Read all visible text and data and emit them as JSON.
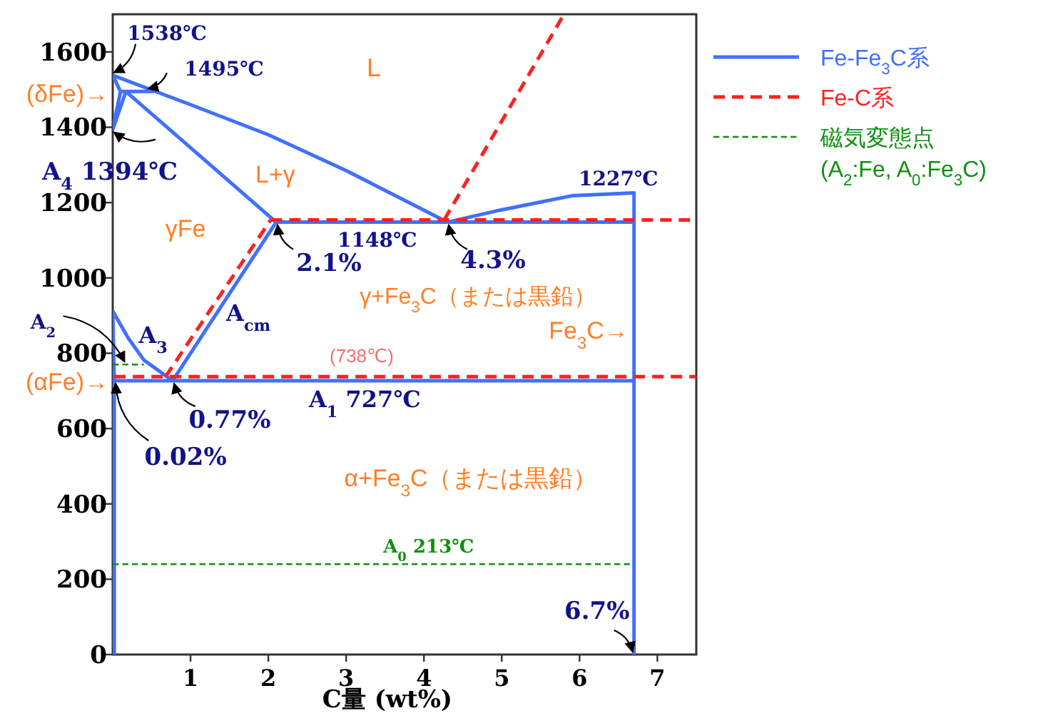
{
  "chart_data": {
    "type": "line",
    "xlabel": "C量 (wt%)",
    "xlim": [
      0,
      7.5
    ],
    "ylim": [
      0,
      1700
    ],
    "xticks": [
      1,
      2,
      3,
      4,
      5,
      6,
      7
    ],
    "yticks": [
      0,
      200,
      400,
      600,
      800,
      1000,
      1200,
      1400,
      1600
    ],
    "grid": false,
    "legend": "top right",
    "marker": "none",
    "series": [
      {
        "name": "Fe-Fe$_{3}$C系",
        "color": "#4070ff",
        "line_style": "solid",
        "x": [
          0,
          1,
          2,
          3,
          4.3,
          4.98,
          5.9,
          6.7,
          6.7,
          6.7,
          null,
          0,
          0.1,
          0,
          null,
          0.1,
          0.53,
          null,
          0,
          0.17,
          2.1,
          null,
          2.1,
          6.7,
          null,
          0.77,
          2.1,
          null,
          0,
          0.2,
          0.4,
          0.77,
          null,
          0,
          0.02,
          0.02,
          null,
          0.02,
          6.7
        ],
        "values": [
          1538,
          1460,
          1380,
          1285,
          1148,
          1180,
          1218,
          1226,
          1148,
          0,
          null,
          1394,
          1495,
          1538,
          null,
          1495,
          1495,
          null,
          1394,
          1495,
          1148,
          null,
          1148,
          1148,
          null,
          727,
          1148,
          null,
          912,
          840,
          782,
          727,
          null,
          912,
          727,
          0,
          null,
          727,
          727
        ]
      },
      {
        "name": "Fe-C系",
        "color": "#ff2020",
        "line_style": "dashed",
        "x": [
          0.02,
          7.5,
          null,
          0.68,
          2.03,
          null,
          2.03,
          7.5,
          null,
          4.26,
          5.8
        ],
        "values": [
          738,
          738,
          null,
          738,
          1154,
          null,
          1154,
          1154,
          null,
          1154,
          1700
        ]
      },
      {
        "name": "磁気変態点 (A$_{2}$:Fe, A$_{0}$:Fe$_{3}$C)",
        "color": "#109010",
        "line_style": "dashed",
        "x": [
          0,
          0.4,
          null,
          0,
          6.7
        ],
        "values": [
          770,
          770,
          null,
          240,
          240
        ]
      }
    ],
    "annotations": [
      {
        "text": "1538℃",
        "x": 0,
        "y": 1538
      },
      {
        "text": "1495℃",
        "x": 0.44,
        "y": 1495
      },
      {
        "text": "(δFe)→",
        "x": 0,
        "y": 1490
      },
      {
        "text": "A$_{4}$ 1394℃",
        "x": 0,
        "y": 1394
      },
      "L",
      "L+γ",
      "γFe",
      {
        "text": "1148℃",
        "x": 3.4,
        "y": 1148
      },
      {
        "text": "2.1%",
        "x": 2.1,
        "y": 1148
      },
      {
        "text": "4.3%",
        "x": 4.3,
        "y": 1148
      },
      {
        "text": "1227℃",
        "x": 6.7,
        "y": 1227
      },
      "γ+Fe$_{3}$C（または黒鉛）",
      {
        "text": "Fe$_{3}$C→",
        "x": 6.7,
        "y": 862
      },
      {
        "text": "A$_{cm}$",
        "x": 1.34,
        "y": 907
      },
      {
        "text": "A$_{3}$",
        "x": 0.3,
        "y": 811
      },
      {
        "text": "A$_{2}$",
        "x": 0.17,
        "y": 770
      },
      {
        "text": "(738℃)",
        "x": 3.2,
        "y": 738
      },
      {
        "text": "(αFe)→",
        "x": 0,
        "y": 725
      },
      {
        "text": "A$_{1}$ 727℃",
        "x": 3.24,
        "y": 727
      },
      {
        "text": "0.77%",
        "x": 0.77,
        "y": 727
      },
      {
        "text": "0.02%",
        "x": 0.02,
        "y": 727
      },
      "α+Fe$_{3}$C（または黒鉛）",
      {
        "text": "A$_{0}$ 213℃",
        "x": 4.06,
        "y": 240
      },
      {
        "text": "6.7%",
        "x": 6.7,
        "y": 0
      }
    ]
  }
}
